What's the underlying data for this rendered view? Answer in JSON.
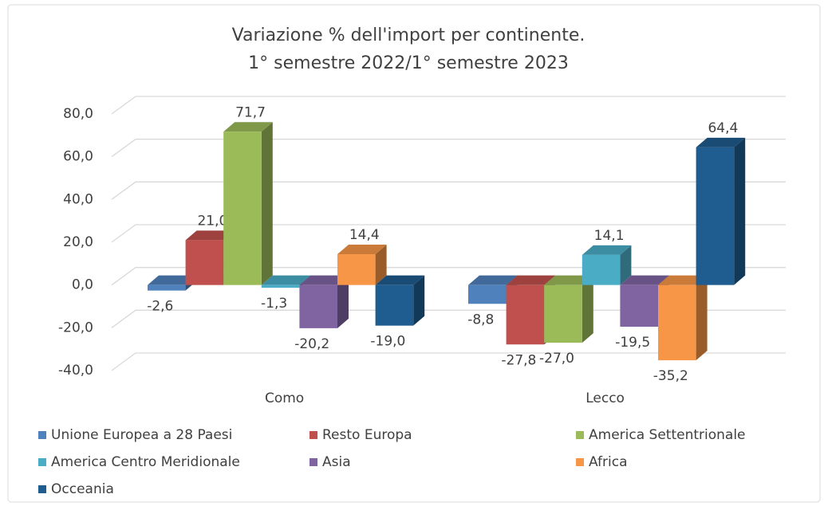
{
  "chart_data": {
    "type": "bar3d",
    "title": [
      "Variazione % dell'import per continente.",
      "1° semestre 2022/1° semestre 2023"
    ],
    "categories": [
      "Como",
      "Lecco"
    ],
    "series": [
      {
        "name": "Unione Europea a 28 Paesi",
        "color": "#4f81bd",
        "values": [
          -2.6,
          -8.8
        ],
        "value_labels": [
          "-2,6",
          "-8,8"
        ]
      },
      {
        "name": "Resto Europa",
        "color": "#c0504d",
        "values": [
          21.0,
          -27.8
        ],
        "value_labels": [
          "21,0",
          "-27,8"
        ]
      },
      {
        "name": "America Settentrionale",
        "color": "#9bbb59",
        "values": [
          71.7,
          -27.0
        ],
        "value_labels": [
          "71,7",
          "-27,0"
        ]
      },
      {
        "name": "America Centro Meridionale",
        "color": "#4bacc6",
        "values": [
          -1.3,
          14.1
        ],
        "value_labels": [
          "-1,3",
          "14,1"
        ]
      },
      {
        "name": "Asia",
        "color": "#8064a2",
        "values": [
          -20.2,
          -19.5
        ],
        "value_labels": [
          "-20,2",
          "-19,5"
        ]
      },
      {
        "name": "Africa",
        "color": "#f79646",
        "values": [
          14.4,
          -35.2
        ],
        "value_labels": [
          "14,4",
          "-35,2"
        ]
      },
      {
        "name": "Occeania",
        "color": "#1f5c8f",
        "values": [
          -19.0,
          64.4
        ],
        "value_labels": [
          "-19,0",
          "64,4"
        ]
      }
    ],
    "ylim": [
      -40,
      80
    ],
    "yticks": [
      {
        "value": -40,
        "label": "-40,0"
      },
      {
        "value": -20,
        "label": "-20,0"
      },
      {
        "value": 0,
        "label": "0,0"
      },
      {
        "value": 20,
        "label": "20,0"
      },
      {
        "value": 40,
        "label": "40,0"
      },
      {
        "value": 60,
        "label": "60,0"
      },
      {
        "value": 80,
        "label": "80,0"
      }
    ],
    "grid": true,
    "legend": "bottom"
  }
}
